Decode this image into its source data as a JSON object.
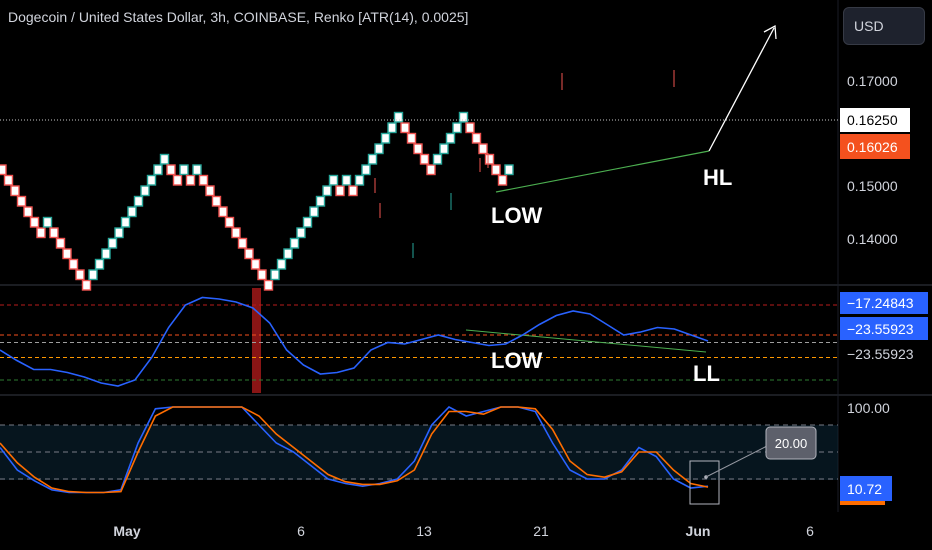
{
  "header": {
    "title": "Dogecoin / United States Dollar, 3h, COINBASE, Renko [ATR(14), 0.0025]",
    "currency": "USD"
  },
  "colors": {
    "background": "#000000",
    "brick_up": "#26a69a",
    "brick_down": "#ef5350",
    "line_blue": "#2962ff",
    "line_orange": "#ff6d00",
    "trend_green": "#4caf50",
    "highlight_red": "#b71c1c",
    "last_price_bg": "#ffffff",
    "prev_price_bg": "#f4511e",
    "badge_blue": "#2962ff"
  },
  "chart_data": [
    {
      "type": "renko",
      "name": "price",
      "brick_size": 0.0025,
      "y_ticks": [
        "0.17000",
        "0.15000",
        "0.14000"
      ],
      "ylim": [
        0.132,
        0.184
      ],
      "price_labels": [
        "0.16250",
        "0.16026"
      ],
      "bricks": [
        {
          "d": "dn",
          "n": 7
        },
        {
          "d": "up",
          "n": 1
        },
        {
          "d": "dn",
          "n": 6
        },
        {
          "d": "up",
          "n": 12
        },
        {
          "d": "dn",
          "n": 2
        },
        {
          "d": "up",
          "n": 1
        },
        {
          "d": "dn",
          "n": 1
        },
        {
          "d": "up",
          "n": 1
        },
        {
          "d": "dn",
          "n": 11
        },
        {
          "d": "up",
          "n": 10
        },
        {
          "d": "dn",
          "n": 1
        },
        {
          "d": "up",
          "n": 1
        },
        {
          "d": "dn",
          "n": 1
        },
        {
          "d": "up",
          "n": 7
        },
        {
          "d": "dn",
          "n": 5
        },
        {
          "d": "up",
          "n": 5
        },
        {
          "d": "dn",
          "n": 6
        },
        {
          "d": "up",
          "n": 1
        }
      ],
      "annotations": [
        "LOW",
        "HL"
      ]
    },
    {
      "type": "line",
      "name": "oscillator",
      "value_labels": [
        "−17.24843",
        "−23.55923",
        "−23.55923"
      ],
      "series": [
        {
          "values": [
            -40,
            -47,
            -53,
            -53,
            -55,
            -58,
            -62,
            -64,
            -60,
            -45,
            -25,
            -10,
            -5,
            -6,
            -8,
            -12,
            -22,
            -40,
            -50,
            -56,
            -55,
            -52,
            -40,
            -35,
            -36,
            -33,
            -30,
            -33,
            -35,
            -37,
            -36,
            -30,
            -23,
            -17,
            -14,
            -16,
            -23,
            -30,
            -28,
            -25,
            -26,
            -30,
            -34
          ]
        }
      ],
      "levels": [
        -10,
        -30,
        -35,
        -45,
        -60
      ],
      "annotations": [
        "LOW",
        "LL"
      ]
    },
    {
      "type": "line",
      "name": "stochastic",
      "y_ticks": [
        "100.00"
      ],
      "ylim": [
        0,
        100
      ],
      "value_labels": [
        "20.00",
        "10.72"
      ],
      "levels": [
        80,
        50,
        20
      ],
      "series": [
        {
          "values": [
            55,
            30,
            18,
            8,
            5,
            5,
            5,
            8,
            60,
            98,
            100,
            100,
            100,
            100,
            100,
            80,
            60,
            50,
            35,
            20,
            15,
            12,
            15,
            20,
            40,
            80,
            100,
            90,
            95,
            100,
            100,
            95,
            60,
            30,
            20,
            20,
            30,
            55,
            45,
            20,
            10,
            12
          ]
        },
        {
          "values": [
            60,
            38,
            22,
            10,
            6,
            5,
            5,
            6,
            50,
            90,
            100,
            100,
            100,
            100,
            100,
            90,
            70,
            55,
            40,
            25,
            17,
            14,
            14,
            18,
            30,
            70,
            95,
            95,
            92,
            100,
            100,
            98,
            75,
            40,
            25,
            22,
            28,
            50,
            50,
            30,
            15,
            11
          ]
        }
      ]
    }
  ],
  "x_axis": {
    "ticks": [
      "May",
      "6",
      "13",
      "21",
      "Jun",
      "6"
    ]
  }
}
